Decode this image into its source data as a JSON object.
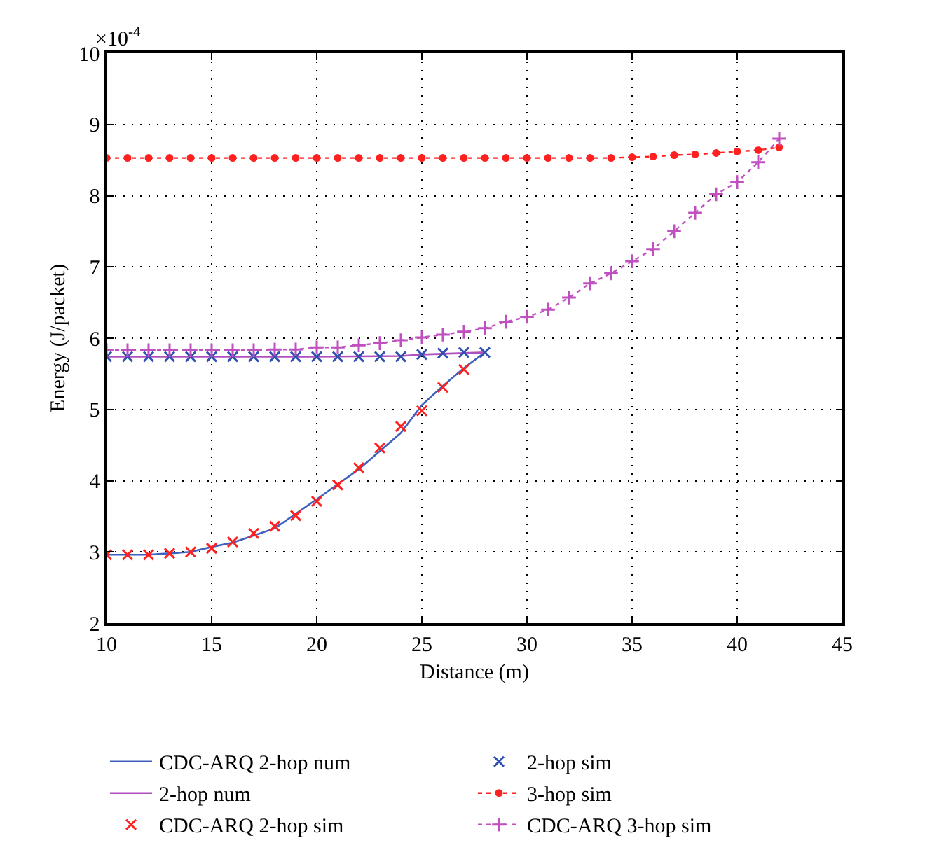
{
  "chart_data": {
    "type": "line",
    "xlabel": "Distance (m)",
    "ylabel": "Energy (J/packet)",
    "annotations": [
      "×10$^{-4}$"
    ],
    "xlim": [
      10,
      45
    ],
    "xticks": [
      10,
      15,
      20,
      25,
      30,
      35,
      40,
      45
    ],
    "ylim": [
      2,
      10
    ],
    "yticks": [
      2,
      3,
      4,
      5,
      6,
      7,
      8,
      9,
      10
    ],
    "grid": true,
    "legend": "bottom",
    "series": [
      {
        "name": "CDC-ARQ 2-hop num",
        "color": "#3f5fbf",
        "marker": "none",
        "line_style": "solid",
        "x": [
          10,
          12,
          14,
          15,
          16,
          18,
          20,
          22,
          24,
          25,
          26,
          27,
          28
        ],
        "values": [
          2.96,
          2.96,
          3.0,
          3.07,
          3.13,
          3.33,
          3.74,
          4.16,
          4.67,
          5.06,
          5.33,
          5.58,
          5.8
        ]
      },
      {
        "name": "2-hop num",
        "color": "#b04fbf",
        "marker": "none",
        "line_style": "solid",
        "x": [
          10,
          15,
          20,
          24,
          25,
          26,
          27,
          28
        ],
        "values": [
          5.74,
          5.74,
          5.74,
          5.75,
          5.77,
          5.78,
          5.79,
          5.8
        ]
      },
      {
        "name": "CDC-ARQ 2-hop sim",
        "type": "scatter",
        "color": "#ff2020",
        "marker": "x",
        "x": [
          10,
          11,
          12,
          13,
          14,
          15,
          16,
          17,
          18,
          19,
          20,
          21,
          22,
          23,
          24,
          25,
          26,
          27
        ],
        "values": [
          2.96,
          2.96,
          2.96,
          2.98,
          3.0,
          3.05,
          3.14,
          3.26,
          3.36,
          3.51,
          3.71,
          3.94,
          4.18,
          4.46,
          4.76,
          4.98,
          5.31,
          5.56
        ]
      },
      {
        "name": "2-hop sim",
        "type": "scatter",
        "color": "#3050b0",
        "marker": "x",
        "x": [
          10,
          11,
          12,
          13,
          14,
          15,
          16,
          17,
          18,
          19,
          20,
          21,
          22,
          23,
          24,
          25,
          26,
          27,
          28
        ],
        "values": [
          5.74,
          5.74,
          5.74,
          5.74,
          5.74,
          5.74,
          5.74,
          5.74,
          5.74,
          5.74,
          5.74,
          5.74,
          5.74,
          5.74,
          5.74,
          5.77,
          5.79,
          5.8,
          5.8
        ]
      },
      {
        "name": "3-hop sim",
        "color": "#ff2020",
        "marker": "circle",
        "line_style": "dotted",
        "x": [
          10,
          11,
          12,
          13,
          14,
          15,
          16,
          17,
          18,
          19,
          20,
          21,
          22,
          23,
          24,
          25,
          26,
          27,
          28,
          29,
          30,
          31,
          32,
          33,
          34,
          35,
          36,
          37,
          38,
          39,
          40,
          41,
          42
        ],
        "values": [
          8.53,
          8.53,
          8.53,
          8.53,
          8.53,
          8.53,
          8.53,
          8.53,
          8.53,
          8.53,
          8.53,
          8.53,
          8.53,
          8.53,
          8.53,
          8.53,
          8.53,
          8.53,
          8.53,
          8.53,
          8.53,
          8.53,
          8.53,
          8.53,
          8.53,
          8.54,
          8.55,
          8.57,
          8.58,
          8.6,
          8.62,
          8.64,
          8.68
        ]
      },
      {
        "name": "CDC-ARQ 3-hop sim",
        "color": "#c050c0",
        "marker": "cross",
        "line_style": "dotted",
        "x": [
          10,
          11,
          12,
          13,
          14,
          15,
          16,
          17,
          18,
          19,
          20,
          21,
          22,
          23,
          24,
          25,
          26,
          27,
          28,
          29,
          30,
          31,
          32,
          33,
          34,
          35,
          36,
          37,
          38,
          39,
          40,
          41,
          42
        ],
        "values": [
          5.83,
          5.83,
          5.83,
          5.83,
          5.83,
          5.83,
          5.83,
          5.83,
          5.84,
          5.84,
          5.87,
          5.87,
          5.9,
          5.93,
          5.97,
          6.01,
          6.05,
          6.09,
          6.14,
          6.23,
          6.3,
          6.4,
          6.57,
          6.77,
          6.91,
          7.08,
          7.25,
          7.5,
          7.76,
          8.02,
          8.19,
          8.47,
          8.8
        ]
      }
    ]
  }
}
